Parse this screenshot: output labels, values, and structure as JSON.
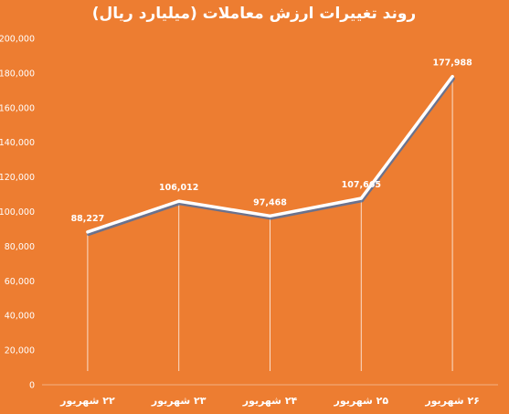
{
  "chart_data": {
    "type": "line",
    "title": "روند تغییرات ارزش معاملات (میلیارد ریال)",
    "categories": [
      "۲۲ شهریور",
      "۲۳ شهریور",
      "۲۴ شهریور",
      "۲۵ شهریور",
      "۲۶ شهریور"
    ],
    "series": [
      {
        "values": [
          88227,
          106012,
          97468,
          107665,
          177988
        ],
        "value_labels": [
          "88,227",
          "106,012",
          "97,468",
          "107,665",
          "177,988"
        ]
      }
    ],
    "ylim": [
      0,
      200000
    ],
    "yticks": [
      0,
      20000,
      40000,
      60000,
      80000,
      100000,
      120000,
      140000,
      160000,
      180000,
      200000
    ],
    "ytick_labels": [
      "0",
      "20,000",
      "40,000",
      "60,000",
      "80,000",
      "100,000",
      "120,000",
      "140,000",
      "160,000",
      "180,000",
      "200,000"
    ],
    "grid": false,
    "drop_lines": true,
    "legend": "none",
    "colors": {
      "background": "#ED7D31",
      "line": "#ffffff",
      "shadow": "#4A6FA5",
      "text": "#ffffff",
      "axis": "#F4B183"
    }
  }
}
